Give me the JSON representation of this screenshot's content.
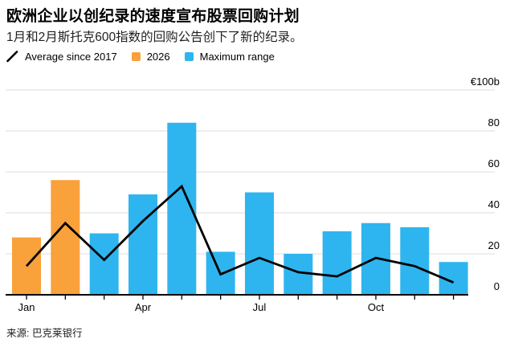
{
  "header": {
    "title": "欧洲企业以创纪录的速度宣布股票回购计划",
    "subtitle": "1月和2月斯托克600指数的回购公告创下了新的纪录。"
  },
  "legend": {
    "items": [
      {
        "label": "Average since 2017",
        "marker": "line",
        "color": "#000000"
      },
      {
        "label": "2026",
        "marker": "square",
        "color": "#F9A13B"
      },
      {
        "label": "Maximum range",
        "marker": "square",
        "color": "#2EB5EF"
      }
    ]
  },
  "chart_data": {
    "type": "bar",
    "title": "欧洲企业以创纪录的速度宣布股票回购计划",
    "categories": [
      "Jan",
      "Feb",
      "Mar",
      "Apr",
      "May",
      "Jun",
      "Jul",
      "Aug",
      "Sep",
      "Oct",
      "Nov",
      "Dec"
    ],
    "series": [
      {
        "name": "2026",
        "type": "bar",
        "color": "#F9A13B",
        "values": [
          28,
          56,
          null,
          null,
          null,
          null,
          null,
          null,
          null,
          null,
          null,
          null
        ]
      },
      {
        "name": "Maximum range",
        "type": "bar",
        "color": "#2EB5EF",
        "values": [
          null,
          null,
          30,
          49,
          84,
          21,
          50,
          20,
          31,
          35,
          33,
          16
        ]
      },
      {
        "name": "Average since 2017",
        "type": "line",
        "color": "#000000",
        "values": [
          14,
          35,
          17,
          36,
          53,
          10,
          18,
          11,
          9,
          18,
          14,
          6
        ]
      }
    ],
    "ylim": [
      0,
      100
    ],
    "yticks": [
      0,
      20,
      40,
      60,
      80
    ],
    "y_axis_top_label": "€100b",
    "x_tick_labels": [
      {
        "index": 0,
        "label": "Jan"
      },
      {
        "index": 3,
        "label": "Apr"
      },
      {
        "index": 6,
        "label": "Jul"
      },
      {
        "index": 9,
        "label": "Oct"
      }
    ],
    "grid": "horizontal",
    "grid_color": "#DDDDDD",
    "axis_color": "#000000",
    "legend_position": "top"
  },
  "source": {
    "label": "来源: 巴克莱银行"
  }
}
